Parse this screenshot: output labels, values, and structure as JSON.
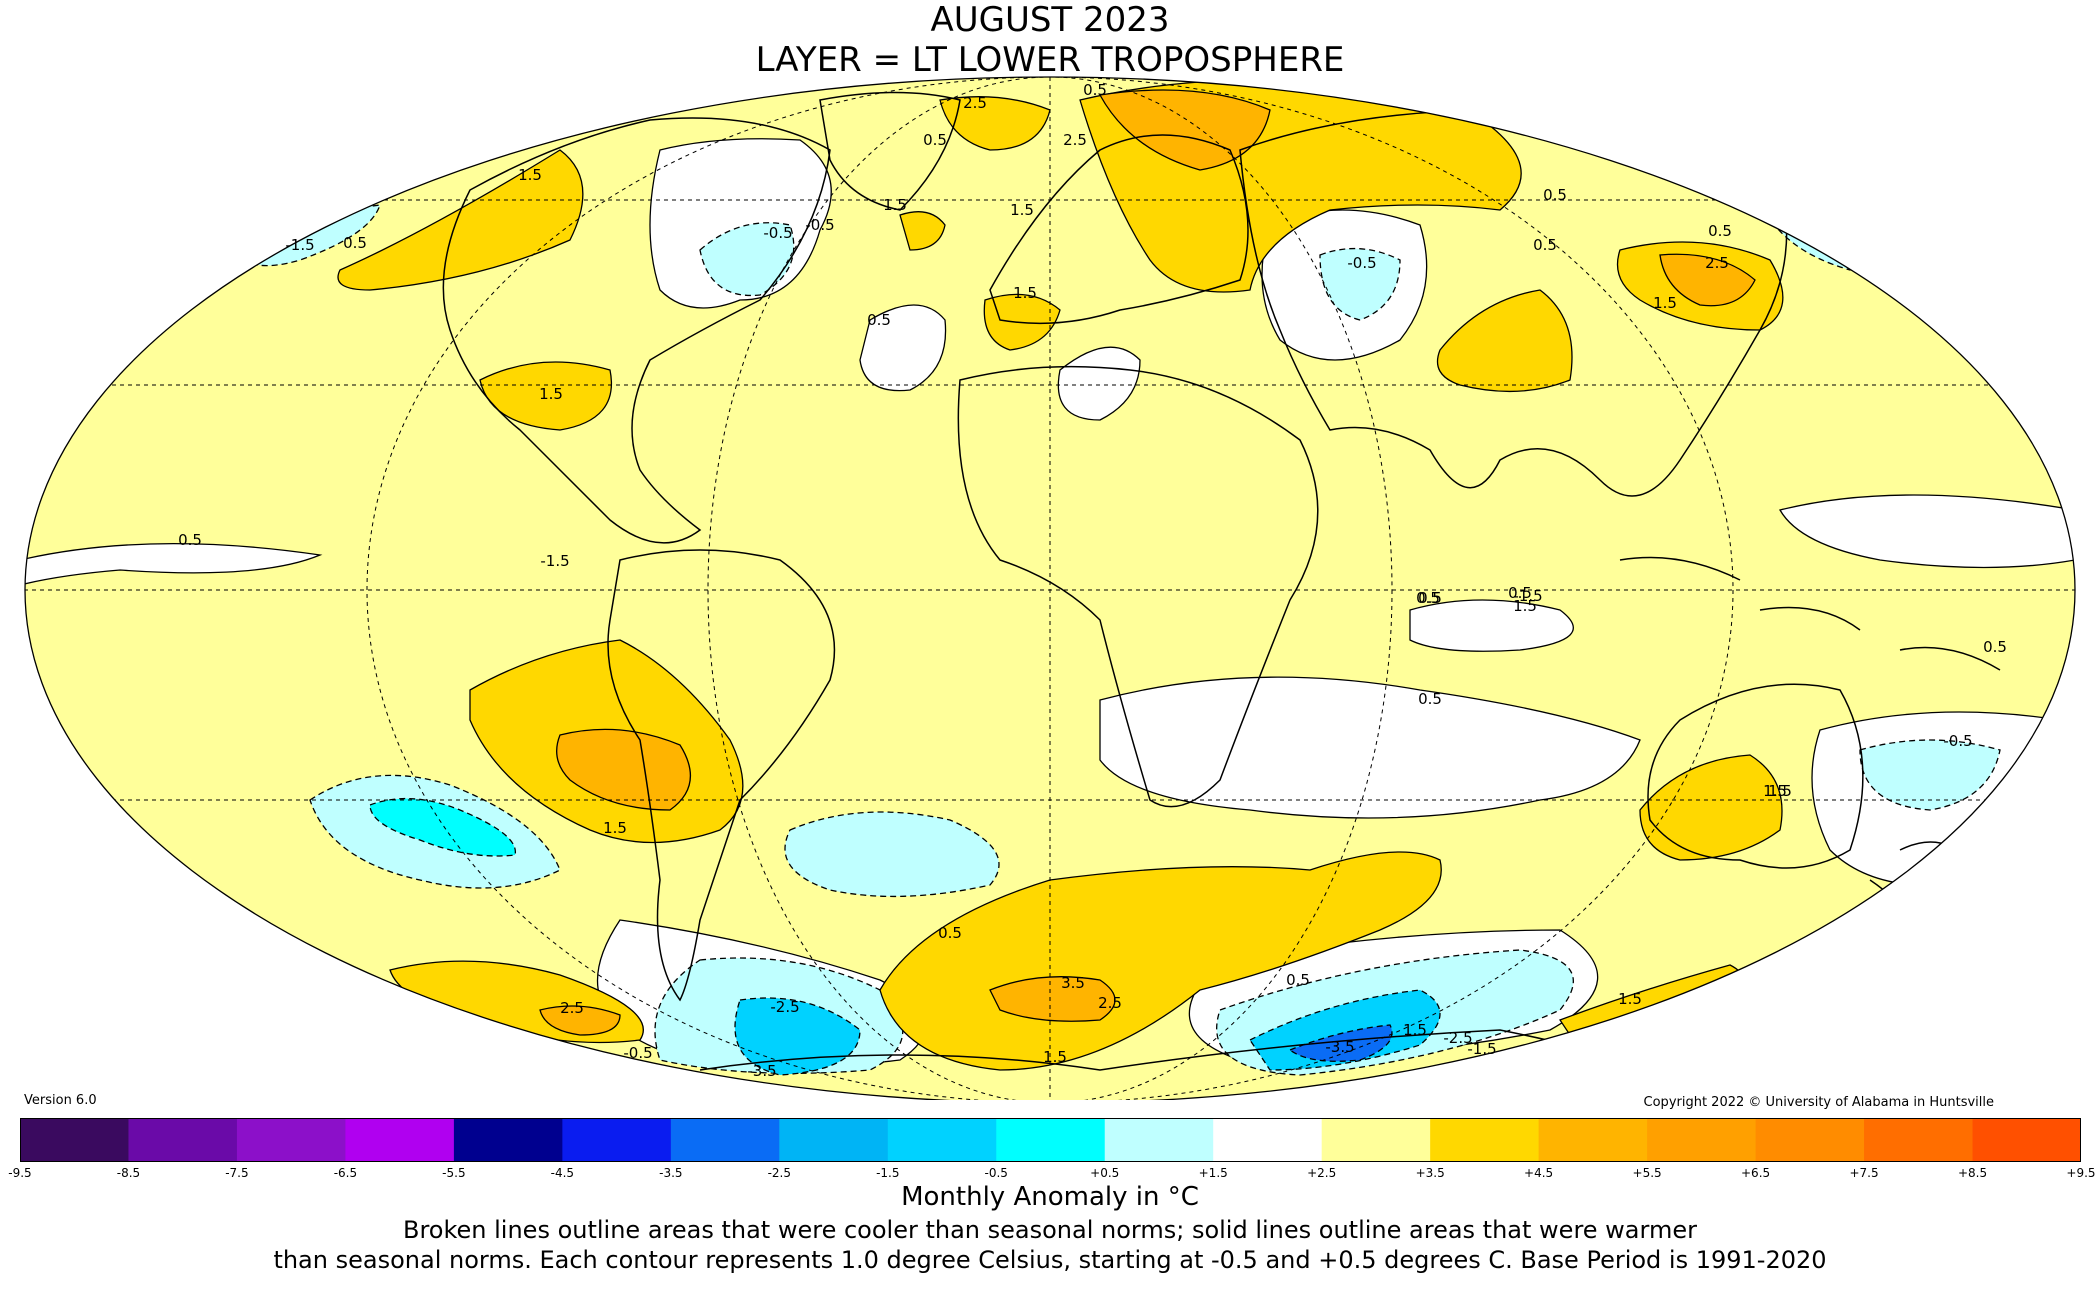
{
  "title": "AUGUST 2023",
  "subtitle": "LAYER = LT LOWER TROPOSPHERE",
  "version": "Version 6.0",
  "copyright": "Copyright 2022 © University of Alabama in Huntsville",
  "colorbar": {
    "label": "Monthly Anomaly in °C",
    "ticks": [
      "-9.5",
      "-8.5",
      "-7.5",
      "-6.5",
      "-5.5",
      "-4.5",
      "-3.5",
      "-2.5",
      "-1.5",
      "-0.5",
      "+0.5",
      "+1.5",
      "+2.5",
      "+3.5",
      "+4.5",
      "+5.5",
      "+6.5",
      "+7.5",
      "+8.5",
      "+9.5"
    ],
    "colors": [
      "#3a0a5f",
      "#6a0aa8",
      "#8c10c9",
      "#b000f0",
      "#00008f",
      "#0a1cf0",
      "#0a6cf5",
      "#00b4f5",
      "#00d2ff",
      "#00ffff",
      "#bfffff",
      "#ffffff",
      "#ffff9a",
      "#ffd800",
      "#ffb400",
      "#ffa000",
      "#ff8c00",
      "#ff6e00",
      "#ff5000",
      "#e60000",
      "#b40000"
    ]
  },
  "caption_line1": "Broken lines outline areas that were cooler than seasonal norms; solid lines outline areas that were warmer",
  "caption_line2": "than seasonal norms. Each contour represents 1.0 degree Celsius, starting at -0.5 and +0.5 degrees C. Base Period is 1991-2020",
  "map": {
    "fill_colors": {
      "neutral": "#ffffff",
      "warm_0_5": "#ffff9a",
      "warm_1_5": "#ffd800",
      "warm_2_5": "#ffb400",
      "cool_0_5": "#bfffff",
      "cool_1_5": "#00ffff",
      "cool_2_5": "#00d2ff",
      "cool_3_5": "#0a6cf5"
    },
    "contour_labels": [
      "2.5",
      "0.5",
      "0.5",
      "1.5",
      "-0.5",
      "-0.5",
      "1.5",
      "1.5",
      "0.5",
      "-1.5",
      "2.5",
      "0.5",
      "0.5",
      "0.5",
      "-0.5",
      "2.5",
      "1.5",
      "1.5",
      "0.5",
      "1.5",
      "0.5",
      "-1.5",
      "-1.5",
      "0.5",
      "0.5",
      "0.5",
      "1.5",
      "1.5",
      "0.5",
      "1.5",
      "3.5",
      "2.5",
      "1.5",
      "0.5",
      "2.5",
      "-2.5",
      "-3.5",
      "1.5",
      "-0.5",
      "-3.5",
      "-2.5",
      "-1.5",
      "0.5",
      "1.5",
      "-0.5",
      "0.5",
      "1.5"
    ]
  }
}
